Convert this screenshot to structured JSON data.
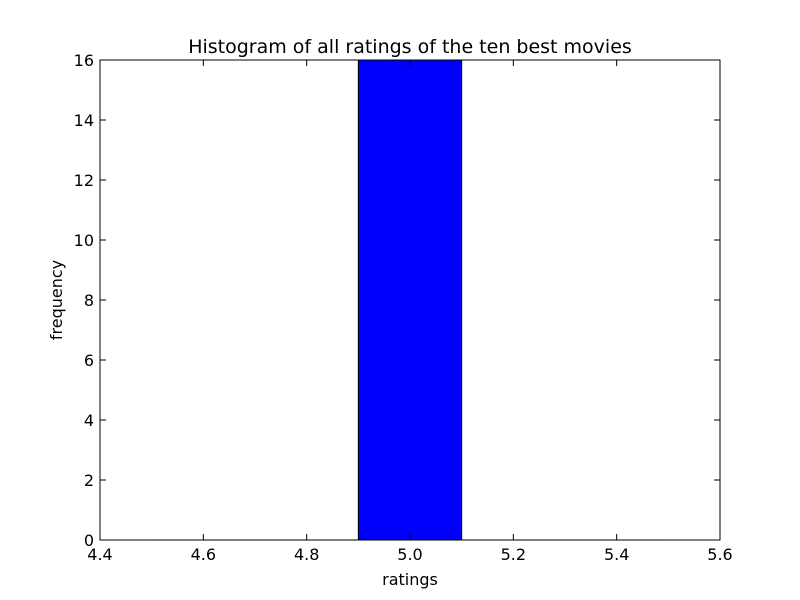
{
  "chart_data": {
    "type": "bar",
    "title": "Histogram of all ratings of the ten best movies",
    "xlabel": "ratings",
    "ylabel": "frequency",
    "xlim": [
      4.4,
      5.6
    ],
    "ylim": [
      0,
      16
    ],
    "xticks": [
      4.4,
      4.6,
      4.8,
      5.0,
      5.2,
      5.4,
      5.6
    ],
    "xtick_labels": [
      "4.4",
      "4.6",
      "4.8",
      "5.0",
      "5.2",
      "5.4",
      "5.6"
    ],
    "yticks": [
      0,
      2,
      4,
      6,
      8,
      10,
      12,
      14,
      16
    ],
    "ytick_labels": [
      "0",
      "2",
      "4",
      "6",
      "8",
      "10",
      "12",
      "14",
      "16"
    ],
    "bins": [
      {
        "x_start": 4.5,
        "x_end": 4.7,
        "value": 0
      },
      {
        "x_start": 4.7,
        "x_end": 4.9,
        "value": 0
      },
      {
        "x_start": 4.9,
        "x_end": 5.1,
        "value": 16
      },
      {
        "x_start": 5.1,
        "x_end": 5.3,
        "value": 0
      },
      {
        "x_start": 5.3,
        "x_end": 5.5,
        "value": 0
      }
    ],
    "bar_color": "#0000ff",
    "edge_color": "#000000",
    "grid": false,
    "legend": "none"
  }
}
